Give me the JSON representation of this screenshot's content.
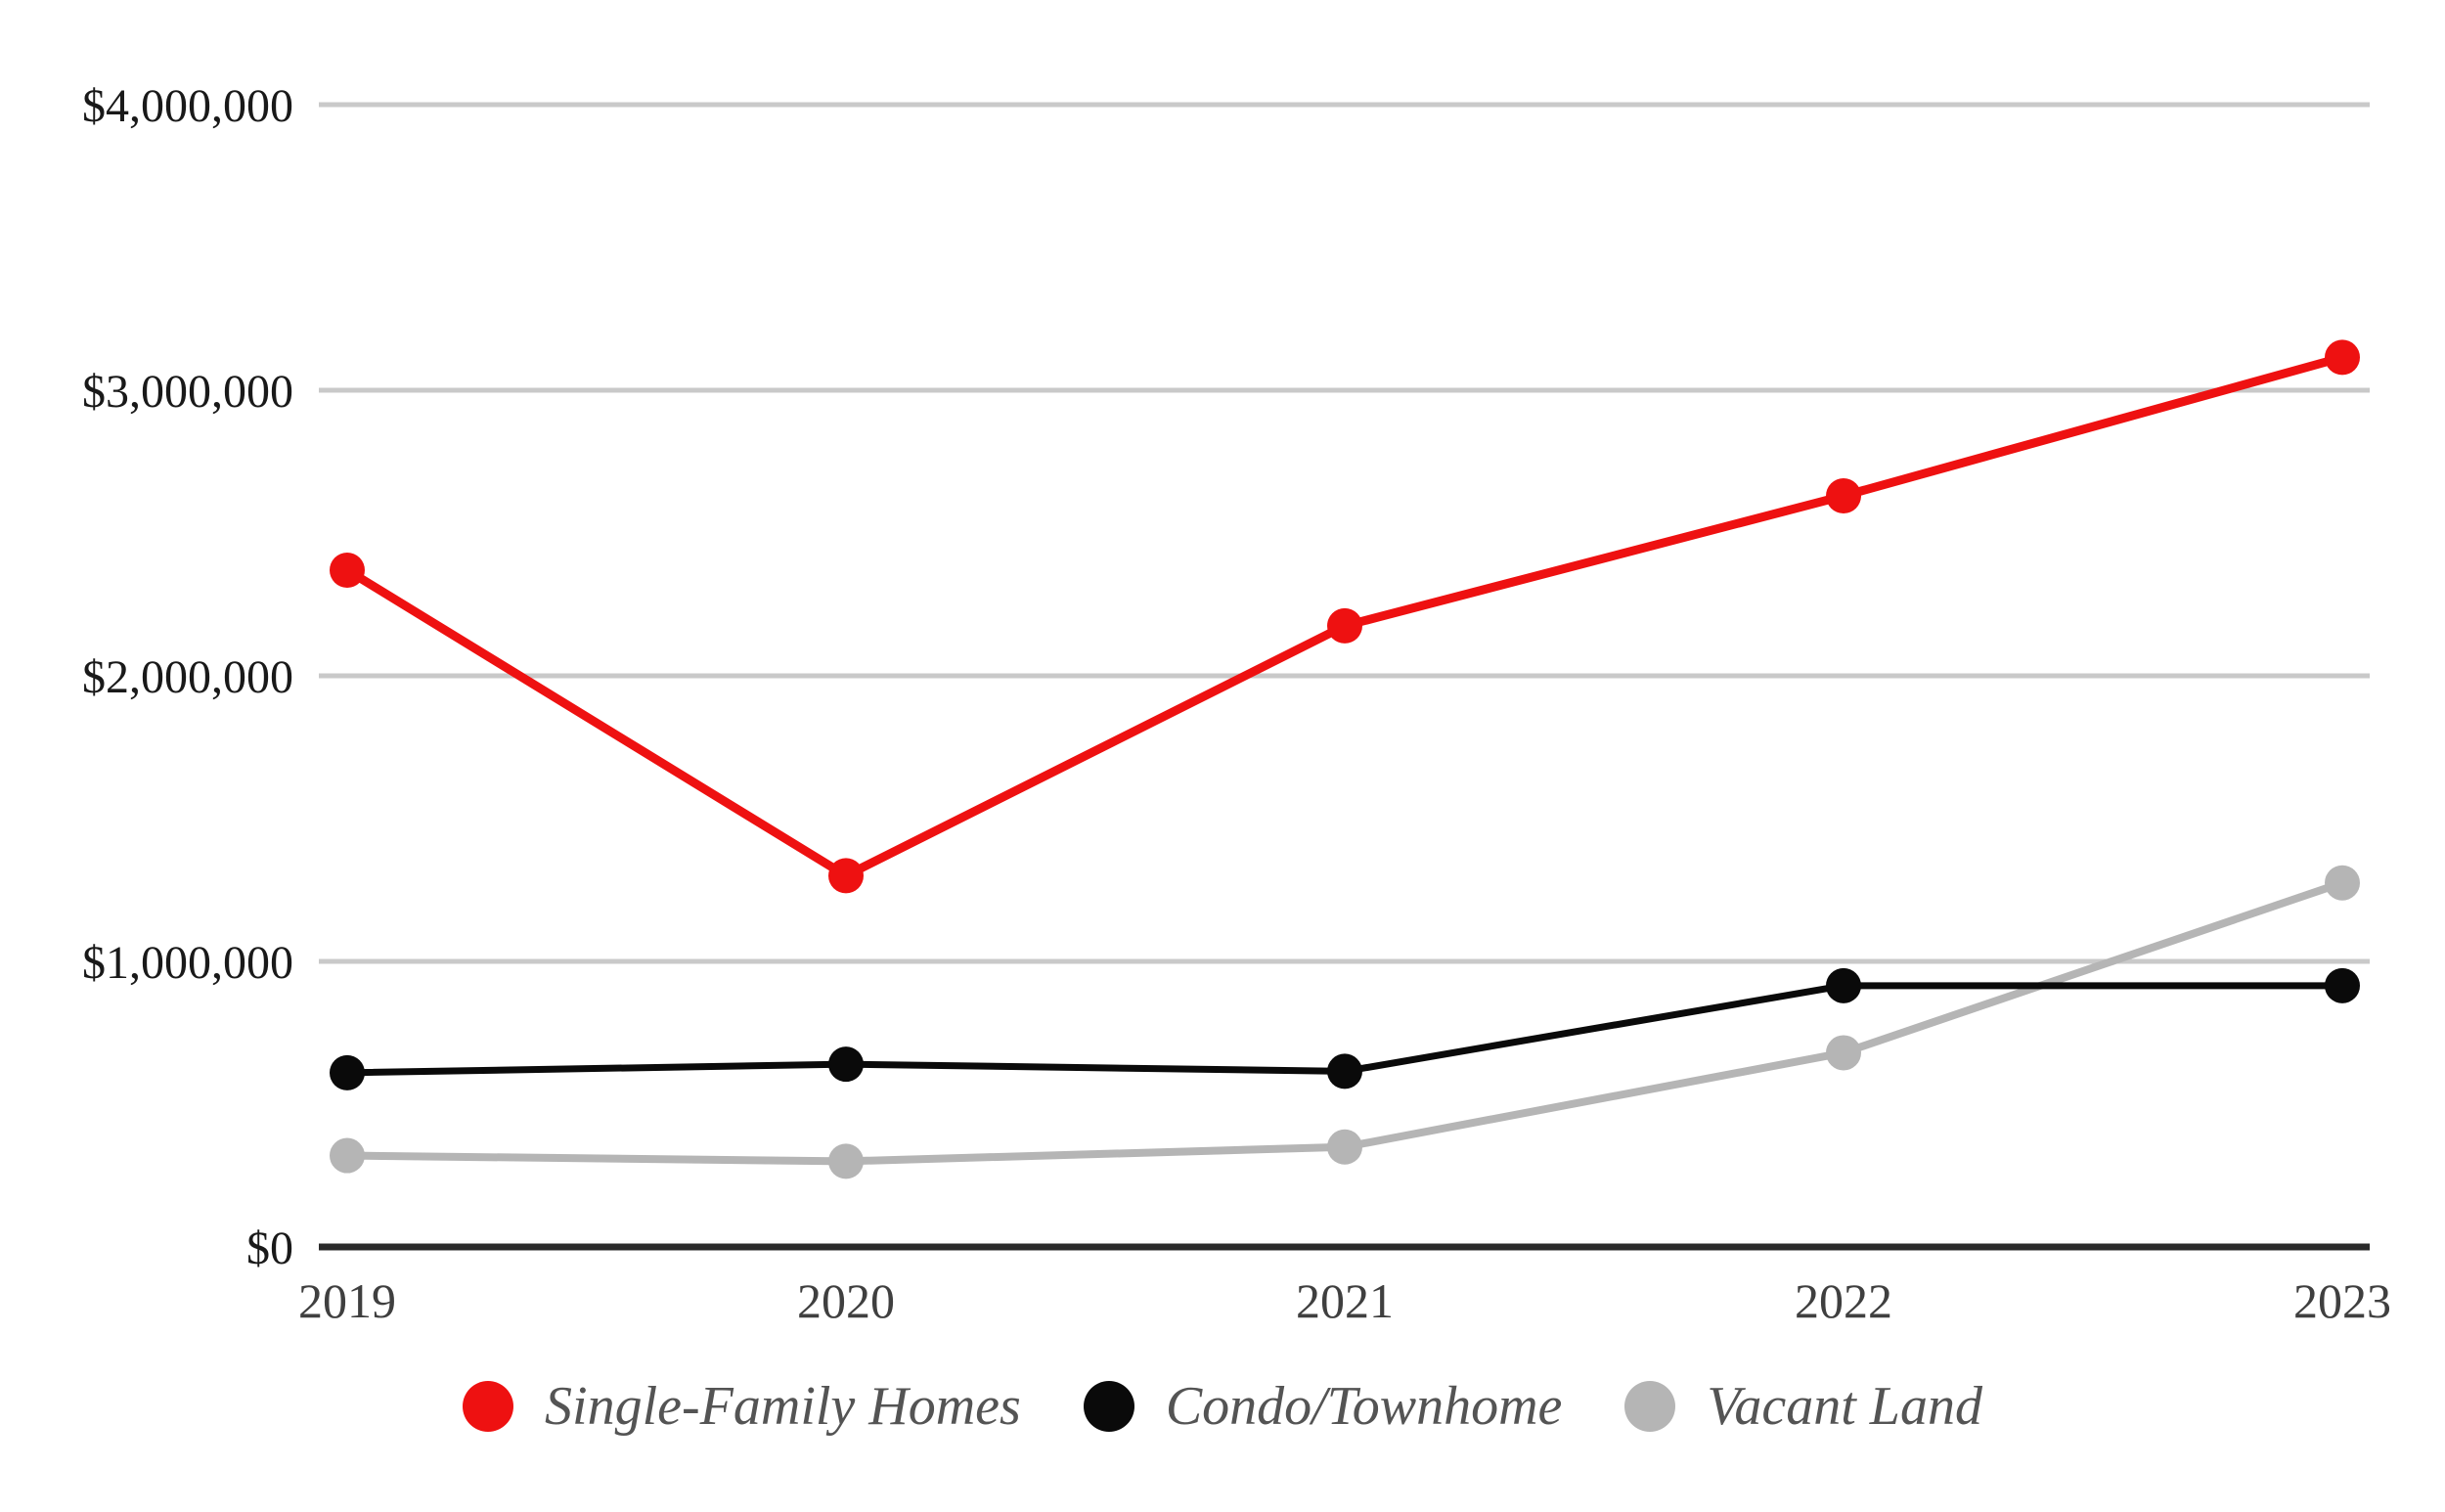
{
  "chart_data": {
    "type": "line",
    "title": "",
    "xlabel": "",
    "ylabel": "",
    "categories": [
      "2019",
      "2020",
      "2021",
      "2022",
      "2023"
    ],
    "series": [
      {
        "name": "Single-Family Homes",
        "color": "#ee1111",
        "values": [
          2370000,
          1300000,
          2175000,
          2630000,
          3115000
        ]
      },
      {
        "name": "Condo/Townhome",
        "color": "#0a0a0a",
        "values": [
          610000,
          640000,
          615000,
          915000,
          915000
        ]
      },
      {
        "name": "Vacant Land",
        "color": "#b5b5b5",
        "values": [
          320000,
          300000,
          350000,
          680000,
          1275000
        ]
      }
    ],
    "ylim": [
      0,
      4000000
    ],
    "y_ticks": [
      {
        "value": 0,
        "label": "$0"
      },
      {
        "value": 1000000,
        "label": "$1,000,000"
      },
      {
        "value": 2000000,
        "label": "$2,000,000"
      },
      {
        "value": 3000000,
        "label": "$3,000,000"
      },
      {
        "value": 4000000,
        "label": "$4,000,000"
      }
    ],
    "grid": "horizontal",
    "legend_position": "bottom-center",
    "colors": {
      "gridline": "#c9c9c9",
      "axis_line": "#2b2b2b",
      "y_tick_label": "#191919",
      "x_tick_label": "#3f3f3f",
      "legend_label": "#545454",
      "background": "#ffffff"
    }
  }
}
